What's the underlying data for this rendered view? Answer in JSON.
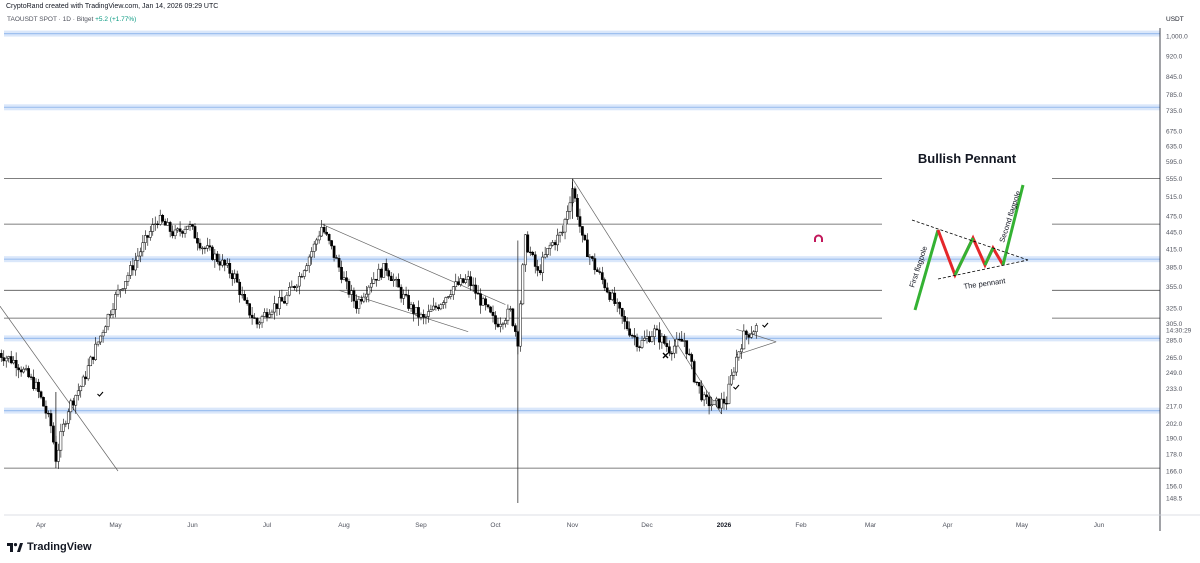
{
  "header": {
    "credit": "CryptoRand created with TradingView.com, Jan 14, 2026 09:29 UTC",
    "symbol": "TAOUSDT SPOT · 1D · Bitget",
    "change": "+5.2 (+1.77%)",
    "currency": "USDT"
  },
  "brand": {
    "name": "TradingView"
  },
  "colors": {
    "up_candle": "#ffffff",
    "down_candle": "#000000",
    "zone": "#bbd3f5",
    "zone_core": "#9ec0ef",
    "line": "#000000",
    "pennant_red": "#e5282b",
    "pennant_green": "#34b233",
    "magnet": "#c2185b"
  },
  "chart_data": {
    "type": "candlestick",
    "ylim": [
      140,
      1080
    ],
    "scale": "log",
    "price_ticks": [
      "1,000.0",
      "920.0",
      "845.0",
      "785.0",
      "735.0",
      "675.0",
      "635.0",
      "595.0",
      "555.0",
      "515.0",
      "475.0",
      "445.0",
      "415.0",
      "385.0",
      "355.0",
      "325.0",
      "305.0",
      "285.0",
      "265.0",
      "249.0",
      "233.0",
      "217.0",
      "202.0",
      "190.0",
      "178.0",
      "166.0",
      "156.0",
      "148.5"
    ],
    "price_tick_values": [
      1000,
      920,
      845,
      785,
      735,
      675,
      635,
      595,
      555,
      515,
      475,
      445,
      415,
      385,
      355,
      325,
      305,
      285,
      265,
      249,
      233,
      217,
      202,
      190,
      178,
      166,
      156,
      148.5
    ],
    "time_axis": [
      {
        "label": "Apr",
        "date": "2025-04-01"
      },
      {
        "label": "May",
        "date": "2025-05-01"
      },
      {
        "label": "Jun",
        "date": "2025-06-01"
      },
      {
        "label": "Jul",
        "date": "2025-07-01"
      },
      {
        "label": "Aug",
        "date": "2025-08-01"
      },
      {
        "label": "Sep",
        "date": "2025-09-01"
      },
      {
        "label": "Oct",
        "date": "2025-10-01"
      },
      {
        "label": "Nov",
        "date": "2025-11-01"
      },
      {
        "label": "Dec",
        "date": "2025-12-01"
      },
      {
        "label": "2026",
        "date": "2026-01-01",
        "bold": true
      },
      {
        "label": "Feb",
        "date": "2026-02-01"
      },
      {
        "label": "Mar",
        "date": "2026-03-01"
      },
      {
        "label": "Apr",
        "date": "2026-04-01"
      },
      {
        "label": "May",
        "date": "2026-05-01"
      },
      {
        "label": "Jun",
        "date": "2026-06-01"
      }
    ],
    "price_path": [
      [
        "2025-03-15",
        270
      ],
      [
        "2025-03-22",
        260
      ],
      [
        "2025-03-30",
        235
      ],
      [
        "2025-04-05",
        200
      ],
      [
        "2025-04-07",
        175
      ],
      [
        "2025-04-12",
        215
      ],
      [
        "2025-04-18",
        240
      ],
      [
        "2025-04-25",
        290
      ],
      [
        "2025-05-01",
        340
      ],
      [
        "2025-05-07",
        380
      ],
      [
        "2025-05-12",
        420
      ],
      [
        "2025-05-18",
        470
      ],
      [
        "2025-05-25",
        440
      ],
      [
        "2025-05-30",
        460
      ],
      [
        "2025-06-05",
        420
      ],
      [
        "2025-06-12",
        395
      ],
      [
        "2025-06-18",
        370
      ],
      [
        "2025-06-22",
        330
      ],
      [
        "2025-06-27",
        305
      ],
      [
        "2025-07-02",
        325
      ],
      [
        "2025-07-08",
        335
      ],
      [
        "2025-07-14",
        370
      ],
      [
        "2025-07-20",
        420
      ],
      [
        "2025-07-23",
        455
      ],
      [
        "2025-07-28",
        405
      ],
      [
        "2025-08-02",
        355
      ],
      [
        "2025-08-06",
        330
      ],
      [
        "2025-08-12",
        365
      ],
      [
        "2025-08-18",
        385
      ],
      [
        "2025-08-24",
        345
      ],
      [
        "2025-08-28",
        325
      ],
      [
        "2025-09-02",
        310
      ],
      [
        "2025-09-08",
        330
      ],
      [
        "2025-09-14",
        355
      ],
      [
        "2025-09-20",
        365
      ],
      [
        "2025-09-26",
        330
      ],
      [
        "2025-10-01",
        305
      ],
      [
        "2025-10-07",
        320
      ],
      [
        "2025-10-10",
        285
      ],
      [
        "2025-10-13",
        430
      ],
      [
        "2025-10-18",
        375
      ],
      [
        "2025-10-23",
        420
      ],
      [
        "2025-10-28",
        445
      ],
      [
        "2025-11-01",
        535
      ],
      [
        "2025-11-05",
        430
      ],
      [
        "2025-11-10",
        385
      ],
      [
        "2025-11-16",
        345
      ],
      [
        "2025-11-22",
        305
      ],
      [
        "2025-11-28",
        280
      ],
      [
        "2025-12-04",
        295
      ],
      [
        "2025-12-10",
        275
      ],
      [
        "2025-12-16",
        285
      ],
      [
        "2025-12-20",
        245
      ],
      [
        "2025-12-24",
        222
      ],
      [
        "2025-12-28",
        218
      ],
      [
        "2026-01-02",
        222
      ],
      [
        "2026-01-06",
        265
      ],
      [
        "2026-01-09",
        290
      ],
      [
        "2026-01-14",
        300
      ]
    ],
    "price_min_wick": {
      "date": "2025-04-07",
      "value": 168
    },
    "price_max_wick": {
      "date": "2025-11-01",
      "value": 555
    },
    "horizontal_zones": [
      1010,
      745,
      398,
      287,
      213
    ],
    "horizontal_lines": [
      555,
      460,
      350,
      312,
      168
    ],
    "vertical_line_date": "2025-10-10",
    "last_price": "14:30:29",
    "annotation": {
      "title": "Bullish Pennant",
      "first_label": "First flagpole",
      "second_label": "Second flagpole",
      "pennant_label": "The pennant"
    }
  }
}
